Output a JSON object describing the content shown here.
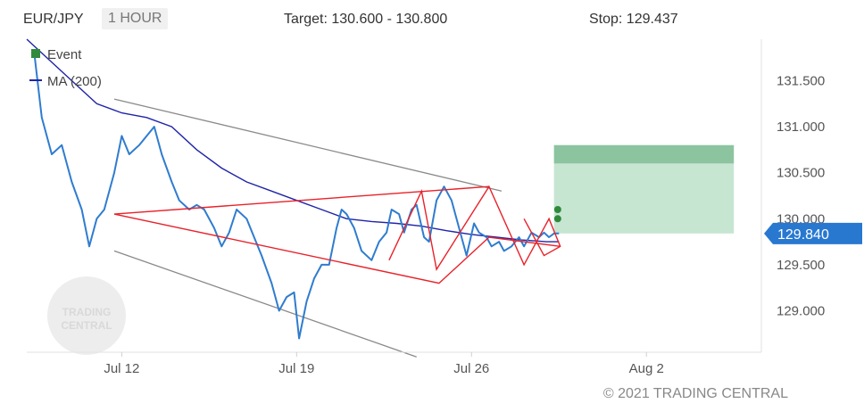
{
  "header": {
    "symbol": "EUR/JPY",
    "timeframe": "1 HOUR",
    "target": "Target: 130.600 - 130.800",
    "stop": "Stop: 129.437"
  },
  "copyright": "© 2021 TRADING CENTRAL",
  "watermark": {
    "line1": "TRADING",
    "line2": "CENTRAL"
  },
  "colors": {
    "price": "#2f7ccf",
    "ma": "#1f24a8",
    "pattern": "#e8222a",
    "channel": "#8a8a8a",
    "target_zone": "#c6e6d2",
    "target_band": "#8cc4a0",
    "event": "#2f8a3c",
    "price_flag": "#2878d0"
  },
  "chart_data": {
    "type": "line",
    "title": "",
    "xlabel": "",
    "ylabel": "",
    "x_tick_labels": [
      "Jul 12",
      "Jul 19",
      "Jul 26",
      "Aug 2"
    ],
    "y_tick_labels": [
      "129.000",
      "129.500",
      "130.000",
      "130.500",
      "131.000",
      "131.500"
    ],
    "y_ticks": [
      129.0,
      129.5,
      130.0,
      130.5,
      131.0,
      131.5
    ],
    "ylim": [
      128.55,
      131.95
    ],
    "x_range_days": [
      -3.8,
      25.6
    ],
    "x_tick_days": [
      0,
      7,
      14,
      21
    ],
    "last_price": "129.840",
    "last_price_value": 129.84,
    "legend": {
      "position": "top-left",
      "entries": [
        {
          "name": "Event",
          "icon": "square-marker-icon"
        },
        {
          "name": "MA (200)",
          "icon": "line-marker-icon"
        }
      ]
    },
    "series": [
      {
        "name": "Price",
        "x": [
          -3.5,
          -3.2,
          -2.8,
          -2.4,
          -2.0,
          -1.6,
          -1.3,
          -1.0,
          -0.7,
          -0.3,
          0.0,
          0.3,
          0.7,
          1.0,
          1.3,
          1.6,
          2.0,
          2.3,
          2.7,
          3.0,
          3.3,
          3.7,
          4.0,
          4.3,
          4.6,
          5.0,
          5.3,
          5.6,
          6.0,
          6.3,
          6.6,
          6.9,
          7.1,
          7.4,
          7.7,
          8.0,
          8.3,
          8.6,
          8.8,
          9.0,
          9.3,
          9.6,
          10.0,
          10.3,
          10.6,
          10.8,
          11.1,
          11.3,
          11.6,
          11.8,
          12.1,
          12.3,
          12.6,
          12.9,
          13.2,
          13.5,
          13.8,
          14.1,
          14.3,
          14.6,
          14.8,
          15.1,
          15.3,
          15.6,
          15.9,
          16.1,
          16.4,
          16.7,
          16.9,
          17.1,
          17.3,
          17.5
        ],
        "values": [
          131.8,
          131.1,
          130.7,
          130.8,
          130.4,
          130.1,
          129.7,
          130.0,
          130.1,
          130.5,
          130.9,
          130.7,
          130.8,
          130.9,
          131.0,
          130.7,
          130.4,
          130.2,
          130.1,
          130.15,
          130.1,
          129.9,
          129.7,
          129.85,
          130.1,
          130.0,
          129.8,
          129.6,
          129.3,
          129.0,
          129.15,
          129.2,
          128.7,
          129.1,
          129.35,
          129.5,
          129.5,
          129.9,
          130.1,
          130.05,
          129.9,
          129.65,
          129.55,
          129.75,
          129.85,
          130.1,
          130.05,
          129.85,
          130.1,
          130.15,
          129.8,
          129.75,
          130.2,
          130.35,
          130.2,
          129.9,
          129.6,
          129.95,
          129.85,
          129.8,
          129.7,
          129.75,
          129.65,
          129.7,
          129.8,
          129.7,
          129.85,
          129.8,
          129.85,
          129.8,
          129.84,
          129.84
        ]
      },
      {
        "name": "MA (200)",
        "x": [
          -3.8,
          -3.0,
          -2.0,
          -1.0,
          0.0,
          1.0,
          2.0,
          3.0,
          4.0,
          5.0,
          6.0,
          7.0,
          8.0,
          9.0,
          10.0,
          11.0,
          12.0,
          13.0,
          14.0,
          15.0,
          16.0,
          17.0,
          17.5
        ],
        "values": [
          131.95,
          131.75,
          131.5,
          131.25,
          131.15,
          131.1,
          131.0,
          130.75,
          130.55,
          130.4,
          130.3,
          130.2,
          130.1,
          130.0,
          129.97,
          129.95,
          129.92,
          129.87,
          129.83,
          129.8,
          129.77,
          129.75,
          129.75
        ]
      }
    ],
    "events": [
      {
        "x": 17.45,
        "y": 130.1
      },
      {
        "x": 17.45,
        "y": 130.0
      }
    ],
    "target_zone": {
      "x_start": 17.3,
      "x_end": 24.5,
      "y_low": 129.84,
      "y_high": 130.6
    },
    "target_band": {
      "x_start": 17.3,
      "x_end": 24.5,
      "y_low": 130.6,
      "y_high": 130.8
    },
    "channel_lines": [
      {
        "x": [
          -0.3,
          15.2
        ],
        "y": [
          131.3,
          130.3
        ]
      },
      {
        "x": [
          -0.3,
          11.8
        ],
        "y": [
          129.65,
          128.5
        ]
      }
    ],
    "pattern_lines": [
      {
        "x": [
          -0.3,
          12.7,
          14.7,
          17.55
        ],
        "y": [
          130.05,
          129.3,
          129.8,
          129.7
        ]
      },
      {
        "x": [
          -0.3,
          14.7
        ],
        "y": [
          130.05,
          130.35
        ]
      },
      {
        "x": [
          10.7,
          12.0,
          12.6,
          14.7,
          16.1,
          17.1,
          17.55,
          16.9,
          16.1
        ],
        "y": [
          129.55,
          130.3,
          129.45,
          130.35,
          129.5,
          130.0,
          129.7,
          129.6,
          130.0
        ]
      }
    ]
  }
}
